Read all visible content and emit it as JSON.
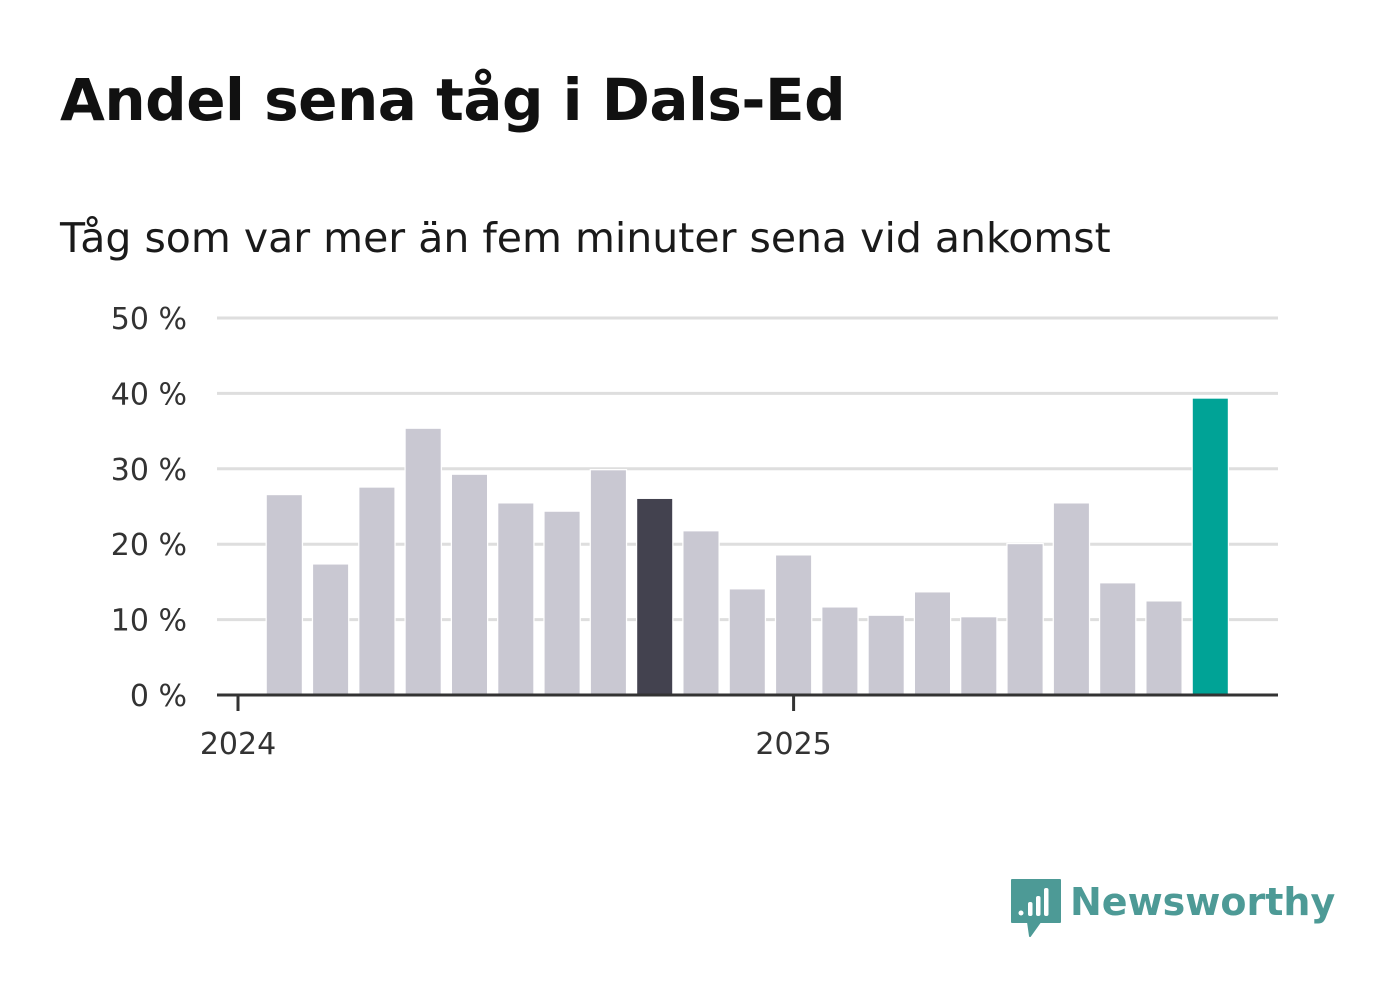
{
  "title": "Andel sena tåg i Dals-Ed",
  "subtitle": "Tåg som var mer än fem minuter sena vid ankomst",
  "brand": {
    "name": "Newsworthy",
    "color": "#4d9a96",
    "icon": "newsworthy-logo-icon"
  },
  "colors": {
    "default_bar": "#c9c8d2",
    "highlight_previous": "#43424f",
    "highlight_current": "#00a396",
    "grid": "#dedede",
    "axis": "#333333"
  },
  "chart_data": {
    "type": "bar",
    "title": "Andel sena tåg i Dals-Ed",
    "subtitle": "Tåg som var mer än fem minuter sena vid ankomst",
    "xlabel": "",
    "ylabel": "",
    "ylim": [
      0,
      50
    ],
    "yticks": [
      0,
      10,
      20,
      30,
      40,
      50
    ],
    "ytick_labels": [
      "0 %",
      "10 %",
      "20 %",
      "30 %",
      "40 %",
      "50 %"
    ],
    "x_tick_labels": [
      "2024",
      "2025"
    ],
    "x_tick_positions": [
      "2024-01",
      "2025-01"
    ],
    "categories": [
      "2024-02",
      "2024-03",
      "2024-04",
      "2024-05",
      "2024-06",
      "2024-07",
      "2024-08",
      "2024-09",
      "2024-10",
      "2024-11",
      "2024-12",
      "2025-01",
      "2025-02",
      "2025-03",
      "2025-04",
      "2025-05",
      "2025-06",
      "2025-07",
      "2025-08",
      "2025-09",
      "2025-10"
    ],
    "values": [
      26.5,
      17.3,
      27.5,
      35.3,
      29.2,
      25.4,
      24.3,
      29.8,
      26.0,
      21.7,
      14.0,
      18.5,
      11.6,
      10.5,
      13.6,
      10.3,
      20.0,
      25.4,
      14.8,
      12.4,
      39.3
    ],
    "highlights": {
      "2024-10": "highlight_previous",
      "2025-10": "highlight_current"
    },
    "grid": true,
    "legend": "none"
  }
}
